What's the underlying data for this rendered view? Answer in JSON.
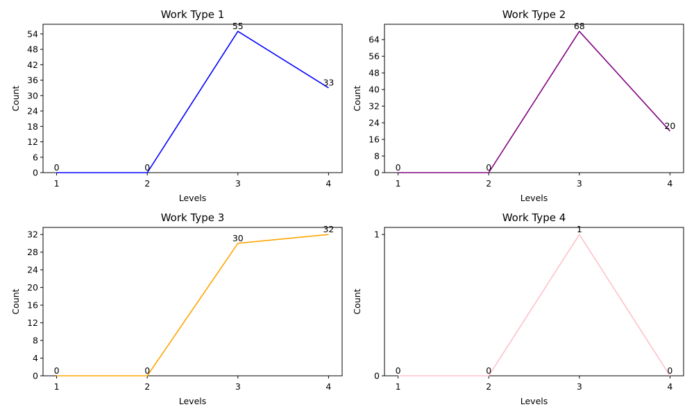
{
  "chart_data": [
    {
      "type": "line",
      "title": "Work Type 1",
      "xlabel": "Levels",
      "ylabel": "Count",
      "x": [
        1,
        2,
        3,
        4
      ],
      "series": [
        {
          "values": [
            0,
            0,
            55,
            33
          ],
          "color": "#0000ff"
        }
      ],
      "xticks": [
        "1",
        "2",
        "3",
        "4"
      ],
      "yticks": [
        "0",
        "6",
        "12",
        "18",
        "24",
        "30",
        "36",
        "42",
        "48",
        "54"
      ],
      "ytick_values": [
        0,
        6,
        12,
        18,
        24,
        30,
        36,
        42,
        48,
        54
      ],
      "ylim": [
        0,
        57.75
      ],
      "grid": false,
      "data_labels": [
        "0",
        "0",
        "55",
        "33"
      ]
    },
    {
      "type": "line",
      "title": "Work Type 2",
      "xlabel": "Levels",
      "ylabel": "Count",
      "x": [
        1,
        2,
        3,
        4
      ],
      "series": [
        {
          "values": [
            0,
            0,
            68,
            20
          ],
          "color": "#800080"
        }
      ],
      "xticks": [
        "1",
        "2",
        "3",
        "4"
      ],
      "yticks": [
        "0",
        "8",
        "16",
        "24",
        "32",
        "40",
        "48",
        "56",
        "64"
      ],
      "ytick_values": [
        0,
        8,
        16,
        24,
        32,
        40,
        48,
        56,
        64
      ],
      "ylim": [
        0,
        71.4
      ],
      "grid": false,
      "data_labels": [
        "0",
        "0",
        "68",
        "20"
      ]
    },
    {
      "type": "line",
      "title": "Work Type 3",
      "xlabel": "Levels",
      "ylabel": "Count",
      "x": [
        1,
        2,
        3,
        4
      ],
      "series": [
        {
          "values": [
            0,
            0,
            30,
            32
          ],
          "color": "#ffa500"
        }
      ],
      "xticks": [
        "1",
        "2",
        "3",
        "4"
      ],
      "yticks": [
        "0",
        "4",
        "8",
        "12",
        "16",
        "20",
        "24",
        "28",
        "32"
      ],
      "ytick_values": [
        0,
        4,
        8,
        12,
        16,
        20,
        24,
        28,
        32
      ],
      "ylim": [
        0,
        33.6
      ],
      "grid": false,
      "data_labels": [
        "0",
        "0",
        "30",
        "32"
      ]
    },
    {
      "type": "line",
      "title": "Work Type 4",
      "xlabel": "Levels",
      "ylabel": "Count",
      "x": [
        1,
        2,
        3,
        4
      ],
      "series": [
        {
          "values": [
            0,
            0,
            1,
            0
          ],
          "color": "#ffc0cb"
        }
      ],
      "xticks": [
        "1",
        "2",
        "3",
        "4"
      ],
      "yticks": [
        "0",
        "1"
      ],
      "ytick_values": [
        0,
        1
      ],
      "ylim": [
        0,
        1.05
      ],
      "grid": false,
      "data_labels": [
        "0",
        "0",
        "1",
        "0"
      ]
    }
  ]
}
